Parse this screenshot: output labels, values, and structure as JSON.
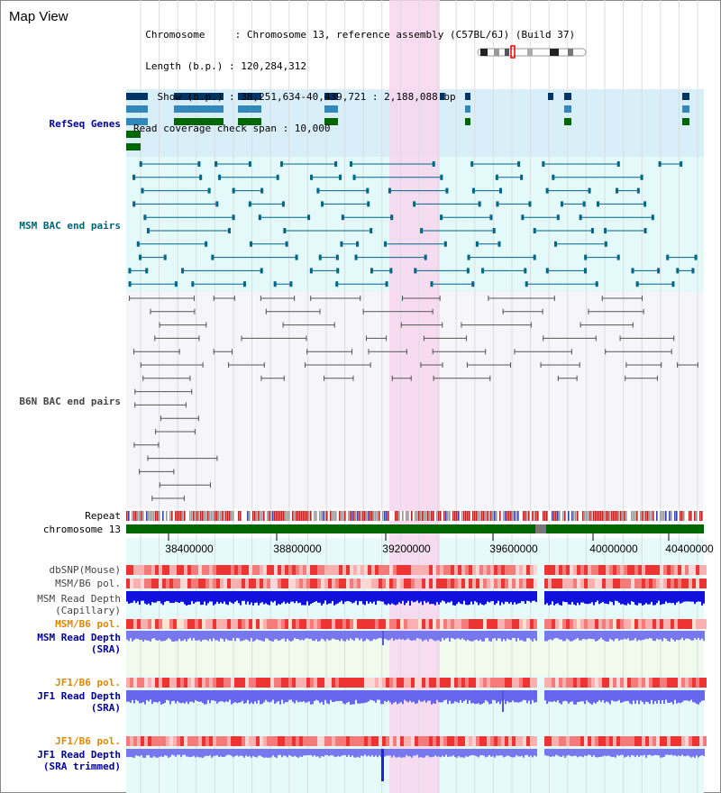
{
  "header": {
    "title": "Map View",
    "info_lines": [
      "  Chromosome     : Chromosome 13, reference assembly (C57BL/6J) (Build 37)",
      "  Length (b.p.) : 120,284,312",
      "    Show (b.p.) : 38,251,634-40,439,721 : 2,188,088 bp",
      "Read coverage check span : 10,000"
    ]
  },
  "tracks": {
    "refseq": "RefSeq Genes",
    "msm_bac": "MSM BAC end pairs",
    "b6n_bac": "B6N BAC end pairs",
    "repeat": "Repeat",
    "chromosome": "chromosome 13",
    "dbsnp": "dbSNP(Mouse)",
    "msm_b6_pol_1": "MSM/B6 pol.",
    "msm_read_depth_cap": "MSM Read Depth\n(Capillary)",
    "msm_b6_pol_2": "MSM/B6 pol.",
    "msm_read_depth_sra": "MSM Read Depth\n(SRA)",
    "jf1_b6_pol_1": "JF1/B6 pol.",
    "jf1_read_depth_sra": "JF1 Read Depth\n(SRA)",
    "jf1_b6_pol_2": "JF1/B6 pol.",
    "jf1_read_depth_trimmed": "JF1 Read Depth\n(SRA trimmed)"
  },
  "axis": {
    "ticks": [
      "38400000",
      "38800000",
      "39200000",
      "39600000",
      "40000000",
      "40400000"
    ]
  },
  "colors": {
    "label_blue": "#000099",
    "label_teal": "#006677",
    "label_gray": "#444444",
    "label_orange": "#dd8800",
    "highlight": "#f9d6ee",
    "refseq_bg": "#d8eef8",
    "msm_bac_bg": "#e4fafa",
    "b6n_bac_bg": "#f6f6fa",
    "chrom_green": "#006600"
  }
}
